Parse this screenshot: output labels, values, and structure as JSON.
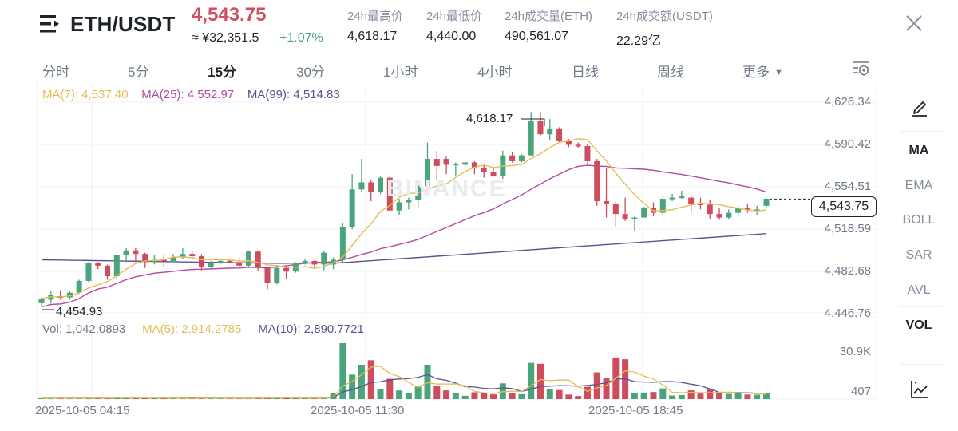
{
  "header": {
    "pair": "ETH/USDT",
    "last_price": "4,543.75",
    "cny_price": "≈ ¥32,351.5",
    "change_pct": "+1.07%",
    "stats": [
      {
        "label": "24h最高价",
        "value": "4,618.17"
      },
      {
        "label": "24h最低价",
        "value": "4,440.00"
      },
      {
        "label": "24h成交量(ETH)",
        "value": "490,561.07"
      },
      {
        "label": "24h成交额(USDT)",
        "value": "22.29亿"
      }
    ],
    "icons": {
      "menu": "menu-icon",
      "close": "close-icon"
    }
  },
  "timeframes": {
    "items": [
      "分时",
      "5分",
      "15分",
      "30分",
      "1小时",
      "4小时",
      "日线",
      "周线",
      "更多"
    ],
    "active": "15分",
    "more_caret": "▼",
    "settings_icon": "chart-settings-icon"
  },
  "indicators": {
    "ma7": "MA(7): 4,537.40",
    "ma25": "MA(25): 4,552.97",
    "ma99": "MA(99): 4,514.83",
    "vol": "Vol: 1,042.0893",
    "vol_ma5": "MA(5): 2,914.2785",
    "vol_ma10": "MA(10): 2,890.7721"
  },
  "price_axis": [
    "4,626.34",
    "4,590.42",
    "4,554.51",
    "4,518.59",
    "4,482.68",
    "4,446.76"
  ],
  "volume_axis": [
    "30.9K",
    "407"
  ],
  "current_price_tag": "4,543.75",
  "annotations": {
    "high": "4,618.17",
    "low": "4,454.93"
  },
  "time_axis": [
    "2025-10-05 04:15",
    "2025-10-05 11:30",
    "2025-10-05 18:45"
  ],
  "watermark": "BINANCE",
  "sidebar": {
    "items": [
      {
        "label": "MA",
        "active": true
      },
      {
        "label": "EMA",
        "active": false
      },
      {
        "label": "BOLL",
        "active": false
      },
      {
        "label": "SAR",
        "active": false
      },
      {
        "label": "AVL",
        "active": false
      },
      {
        "label": "VOL",
        "active": true
      }
    ],
    "draw_icon": "pencil-icon",
    "indicator_icon": "line-chart-icon"
  },
  "colors": {
    "up": "#4aa57c",
    "down": "#cf4c5e",
    "ma7": "#e3be55",
    "ma25": "#b24a9f",
    "ma99": "#5b5390",
    "grid": "#f0f1f3"
  },
  "chart_data": {
    "type": "candlestick",
    "title": "ETH/USDT 15分",
    "ylim": [
      4446.76,
      4626.34
    ],
    "yticks": [
      4626.34,
      4590.42,
      4554.51,
      4518.59,
      4482.68,
      4446.76
    ],
    "x_ticks": [
      "2025-10-05 04:15",
      "2025-10-05 11:30",
      "2025-10-05 18:45"
    ],
    "candles": [
      [
        4455,
        4460,
        4453,
        4459
      ],
      [
        4458,
        4465,
        4455,
        4462
      ],
      [
        4461,
        4466,
        4458,
        4460
      ],
      [
        4460,
        4465,
        4458,
        4464
      ],
      [
        4464,
        4475,
        4463,
        4474
      ],
      [
        4474,
        4490,
        4473,
        4489
      ],
      [
        4489,
        4490,
        4484,
        4487
      ],
      [
        4487,
        4488,
        4475,
        4478
      ],
      [
        4478,
        4497,
        4476,
        4496
      ],
      [
        4496,
        4502,
        4490,
        4500
      ],
      [
        4500,
        4502,
        4490,
        4497
      ],
      [
        4497,
        4498,
        4485,
        4490
      ],
      [
        4490,
        4496,
        4488,
        4492
      ],
      [
        4492,
        4496,
        4486,
        4491
      ],
      [
        4491,
        4497,
        4490,
        4494
      ],
      [
        4494,
        4502,
        4493,
        4497
      ],
      [
        4497,
        4499,
        4492,
        4495
      ],
      [
        4495,
        4497,
        4483,
        4486
      ],
      [
        4486,
        4491,
        4485,
        4490
      ],
      [
        4490,
        4493,
        4488,
        4491
      ],
      [
        4491,
        4493,
        4489,
        4490
      ],
      [
        4490,
        4494,
        4485,
        4487
      ],
      [
        4487,
        4500,
        4486,
        4499
      ],
      [
        4499,
        4500,
        4483,
        4485
      ],
      [
        4485,
        4486,
        4467,
        4472
      ],
      [
        4472,
        4486,
        4471,
        4485
      ],
      [
        4485,
        4487,
        4476,
        4482
      ],
      [
        4482,
        4490,
        4481,
        4489
      ],
      [
        4489,
        4493,
        4488,
        4491
      ],
      [
        4491,
        4492,
        4485,
        4488
      ],
      [
        4488,
        4500,
        4483,
        4498
      ],
      [
        4488,
        4494,
        4484,
        4492
      ],
      [
        4492,
        4523,
        4490,
        4520
      ],
      [
        4520,
        4565,
        4518,
        4552
      ],
      [
        4552,
        4578,
        4550,
        4558
      ],
      [
        4558,
        4560,
        4542,
        4550
      ],
      [
        4550,
        4563,
        4548,
        4562
      ],
      [
        4562,
        4564,
        4535,
        4534
      ],
      [
        4534,
        4544,
        4530,
        4541
      ],
      [
        4541,
        4545,
        4535,
        4543
      ],
      [
        4543,
        4558,
        4537,
        4555
      ],
      [
        4555,
        4592,
        4552,
        4578
      ],
      [
        4578,
        4585,
        4560,
        4572
      ],
      [
        4578,
        4580,
        4565,
        4573
      ],
      [
        4573,
        4575,
        4563,
        4574
      ],
      [
        4573,
        4576,
        4571,
        4575
      ],
      [
        4575,
        4576,
        4565,
        4570
      ],
      [
        4570,
        4573,
        4562,
        4567
      ],
      [
        4567,
        4570,
        4563,
        4563
      ],
      [
        4563,
        4585,
        4561,
        4581
      ],
      [
        4581,
        4584,
        4575,
        4576
      ],
      [
        4576,
        4582,
        4575,
        4581
      ],
      [
        4581,
        4618,
        4580,
        4610
      ],
      [
        4610,
        4618,
        4598,
        4599
      ],
      [
        4599,
        4612,
        4594,
        4604
      ],
      [
        4604,
        4605,
        4592,
        4593
      ],
      [
        4593,
        4595,
        4588,
        4590
      ],
      [
        4590,
        4592,
        4587,
        4589
      ],
      [
        4589,
        4591,
        4572,
        4576
      ],
      [
        4576,
        4578,
        4538,
        4542
      ],
      [
        4542,
        4570,
        4528,
        4540
      ],
      [
        4540,
        4542,
        4520,
        4531
      ],
      [
        4531,
        4545,
        4525,
        4527
      ],
      [
        4527,
        4529,
        4517,
        4528
      ],
      [
        4528,
        4537,
        4528,
        4536
      ],
      [
        4536,
        4541,
        4529,
        4532
      ],
      [
        4532,
        4546,
        4530,
        4544
      ],
      [
        4544,
        4548,
        4542,
        4545
      ],
      [
        4545,
        4551,
        4544,
        4546
      ],
      [
        4545,
        4547,
        4532,
        4540
      ],
      [
        4540,
        4545,
        4535,
        4539
      ],
      [
        4539,
        4543,
        4527,
        4531
      ],
      [
        4531,
        4536,
        4526,
        4528
      ],
      [
        4528,
        4535,
        4527,
        4532
      ],
      [
        4532,
        4538,
        4529,
        4536
      ],
      [
        4536,
        4540,
        4532,
        4535
      ],
      [
        4535,
        4538,
        4530,
        4535
      ],
      [
        4538,
        4545,
        4537,
        4544
      ]
    ],
    "series": [
      {
        "name": "MA(7)",
        "last": 4537.4
      },
      {
        "name": "MA(25)",
        "last": 4552.97
      },
      {
        "name": "MA(99)",
        "last": 4514.83
      }
    ],
    "volume": {
      "ylim": [
        0,
        30900
      ],
      "yticks": [
        "30.9K",
        "407"
      ],
      "series": [
        {
          "name": "MA(5)",
          "last": 2914.2785
        },
        {
          "name": "MA(10)",
          "last": 2890.7721
        }
      ]
    }
  }
}
